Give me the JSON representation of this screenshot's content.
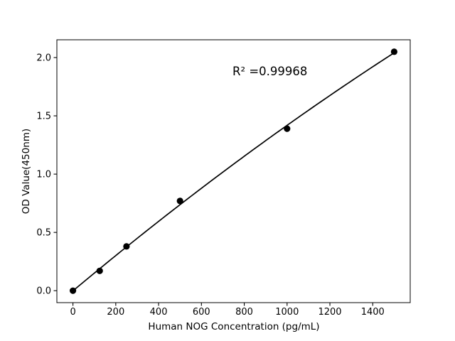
{
  "chart_data": {
    "type": "scatter",
    "fit": "quadratic",
    "x": [
      0,
      125,
      250,
      500,
      1000,
      1500
    ],
    "y": [
      0.0,
      0.17,
      0.38,
      0.77,
      1.39,
      2.05
    ],
    "title": "",
    "xlabel": "Human NOG Concentration (pg/mL)",
    "ylabel": "OD Value(450nm)",
    "annotation": "R² =0.99968",
    "xticks": [
      0,
      200,
      400,
      600,
      800,
      1000,
      1200,
      1400
    ],
    "xtick_labels": [
      "0",
      "200",
      "400",
      "600",
      "800",
      "1000",
      "1200",
      "1400"
    ],
    "yticks": [
      0.0,
      0.5,
      1.0,
      1.5,
      2.0
    ],
    "ytick_labels": [
      "0.0",
      "0.5",
      "1.0",
      "1.5",
      "2.0"
    ],
    "xlim": [
      -75,
      1575
    ],
    "ylim": [
      -0.1025,
      2.1525
    ],
    "grid": false,
    "line_color": "#000000",
    "marker_color": "#000000",
    "axis_color": "#000000",
    "background_color": "#ffffff"
  }
}
